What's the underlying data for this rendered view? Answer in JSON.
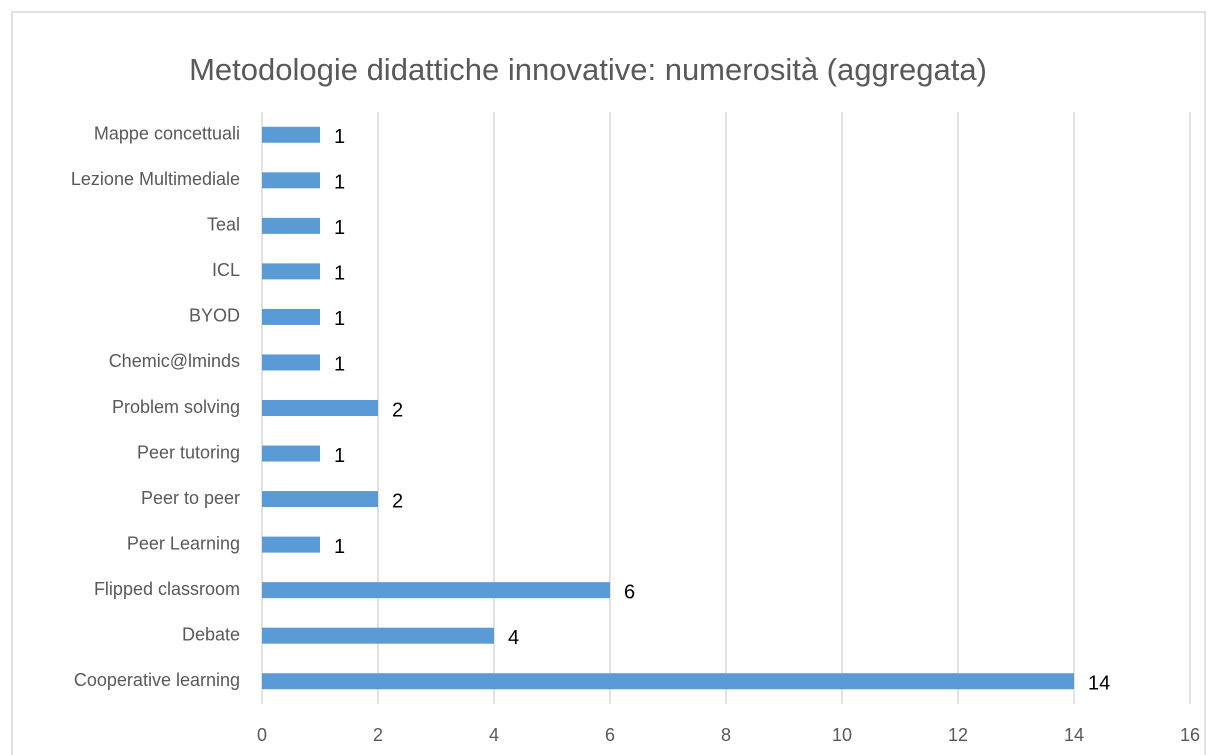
{
  "chart_data": {
    "type": "bar",
    "orientation": "horizontal",
    "title": "Metodologie didattiche innovative: numerosità (aggregata)",
    "categories": [
      "Mappe concettuali",
      "Lezione Multimediale",
      "Teal",
      "ICL",
      "BYOD",
      "Chemic@lminds",
      "Problem solving",
      "Peer tutoring",
      "Peer to peer",
      "Peer Learning",
      "Flipped classroom",
      "Debate",
      "Cooperative learning"
    ],
    "values": [
      1,
      1,
      1,
      1,
      1,
      1,
      2,
      1,
      2,
      1,
      6,
      4,
      14
    ],
    "color": "#5b9bd5",
    "xlim": [
      0,
      16
    ],
    "xticks": [
      0,
      2,
      4,
      6,
      8,
      10,
      12,
      14,
      16
    ],
    "grid": true
  }
}
